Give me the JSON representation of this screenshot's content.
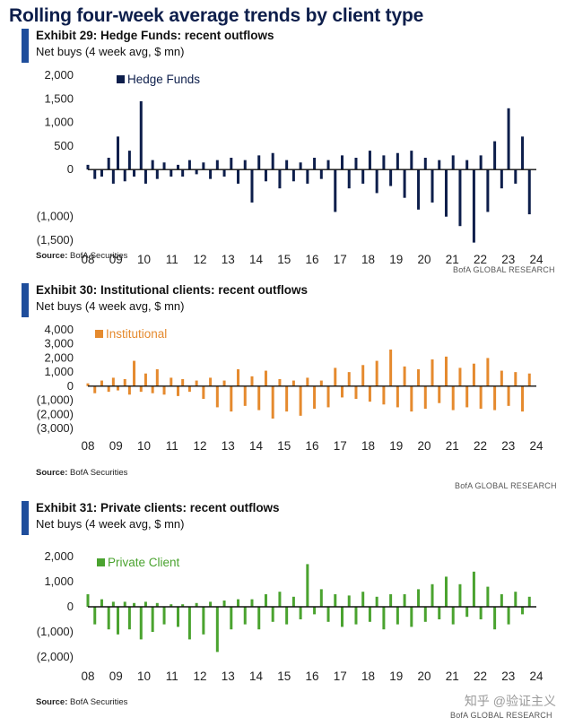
{
  "page_title": "Rolling four-week average trends by client type",
  "watermark": "知乎 @验证主义",
  "chart_data": [
    {
      "type": "bar",
      "exhibit_title": "Exhibit 29: Hedge Funds: recent outflows",
      "subtitle": "Net buys (4 week avg, $ mn)",
      "legend": "Hedge Funds",
      "color": "#0d1e4b",
      "yticks": [
        2000,
        1500,
        1000,
        500,
        0,
        -1000,
        -1500
      ],
      "ytick_labels": [
        "2,000",
        "1,500",
        "1,000",
        "500",
        "0",
        "(1,000)",
        "(1,500)"
      ],
      "ylim": [
        -1500,
        2000
      ],
      "xticks": [
        "08",
        "09",
        "10",
        "11",
        "12",
        "13",
        "14",
        "15",
        "16",
        "17",
        "18",
        "19",
        "20",
        "21",
        "22",
        "23",
        "24"
      ],
      "series": [
        {
          "x": 2008.0,
          "y": 100
        },
        {
          "x": 2008.3,
          "y": -200
        },
        {
          "x": 2008.6,
          "y": -150
        },
        {
          "x": 2008.9,
          "y": 250
        },
        {
          "x": 2009.1,
          "y": -300
        },
        {
          "x": 2009.3,
          "y": 700
        },
        {
          "x": 2009.6,
          "y": -250
        },
        {
          "x": 2009.8,
          "y": 400
        },
        {
          "x": 2010.0,
          "y": -150
        },
        {
          "x": 2010.3,
          "y": 1450
        },
        {
          "x": 2010.5,
          "y": -300
        },
        {
          "x": 2010.8,
          "y": 200
        },
        {
          "x": 2011.0,
          "y": -200
        },
        {
          "x": 2011.3,
          "y": 150
        },
        {
          "x": 2011.6,
          "y": -150
        },
        {
          "x": 2011.9,
          "y": 100
        },
        {
          "x": 2012.1,
          "y": -150
        },
        {
          "x": 2012.4,
          "y": 200
        },
        {
          "x": 2012.7,
          "y": -100
        },
        {
          "x": 2013.0,
          "y": 150
        },
        {
          "x": 2013.3,
          "y": -200
        },
        {
          "x": 2013.6,
          "y": 200
        },
        {
          "x": 2013.9,
          "y": -150
        },
        {
          "x": 2014.2,
          "y": 250
        },
        {
          "x": 2014.5,
          "y": -300
        },
        {
          "x": 2014.8,
          "y": 200
        },
        {
          "x": 2015.1,
          "y": -700
        },
        {
          "x": 2015.4,
          "y": 300
        },
        {
          "x": 2015.7,
          "y": -250
        },
        {
          "x": 2016.0,
          "y": 350
        },
        {
          "x": 2016.3,
          "y": -400
        },
        {
          "x": 2016.6,
          "y": 200
        },
        {
          "x": 2016.9,
          "y": -250
        },
        {
          "x": 2017.2,
          "y": 150
        },
        {
          "x": 2017.5,
          "y": -300
        },
        {
          "x": 2017.8,
          "y": 250
        },
        {
          "x": 2018.1,
          "y": -200
        },
        {
          "x": 2018.4,
          "y": 200
        },
        {
          "x": 2018.7,
          "y": -900
        },
        {
          "x": 2019.0,
          "y": 300
        },
        {
          "x": 2019.3,
          "y": -400
        },
        {
          "x": 2019.6,
          "y": 250
        },
        {
          "x": 2019.9,
          "y": -300
        },
        {
          "x": 2020.2,
          "y": 400
        },
        {
          "x": 2020.5,
          "y": -500
        },
        {
          "x": 2020.8,
          "y": 300
        },
        {
          "x": 2021.1,
          "y": -350
        },
        {
          "x": 2021.4,
          "y": 350
        },
        {
          "x": 2021.7,
          "y": -600
        },
        {
          "x": 2022.0,
          "y": 400
        },
        {
          "x": 2022.3,
          "y": -850
        },
        {
          "x": 2022.6,
          "y": 250
        },
        {
          "x": 2022.9,
          "y": -700
        },
        {
          "x": 2023.2,
          "y": 200
        },
        {
          "x": 2023.5,
          "y": -1000
        },
        {
          "x": 2023.8,
          "y": 300
        },
        {
          "x": 2024.1,
          "y": -1200
        },
        {
          "x": 2024.4,
          "y": 200
        },
        {
          "x": 2024.7,
          "y": -1550
        },
        {
          "x": 2025.0,
          "y": 300
        },
        {
          "x": 2025.3,
          "y": -900
        },
        {
          "x": 2025.6,
          "y": 600
        },
        {
          "x": 2025.9,
          "y": -400
        },
        {
          "x": 2026.2,
          "y": 1300
        },
        {
          "x": 2026.5,
          "y": -300
        },
        {
          "x": 2026.8,
          "y": 700
        },
        {
          "x": 2027.1,
          "y": -950
        }
      ]
    },
    {
      "type": "bar",
      "exhibit_title": "Exhibit 30: Institutional clients: recent outflows",
      "subtitle": "Net buys (4 week avg, $ mn)",
      "legend": "Institutional",
      "color": "#e58a2e",
      "yticks": [
        4000,
        3000,
        2000,
        1000,
        0,
        -1000,
        -2000,
        -3000
      ],
      "ytick_labels": [
        "4,000",
        "3,000",
        "2,000",
        "1,000",
        "0",
        "(1,000)",
        "(2,000)",
        "(3,000)"
      ],
      "ylim": [
        -3000,
        4000
      ],
      "xticks": [
        "08",
        "09",
        "10",
        "11",
        "12",
        "13",
        "14",
        "15",
        "16",
        "17",
        "18",
        "19",
        "20",
        "21",
        "22",
        "23",
        "24"
      ],
      "series": [
        {
          "x": 2008.0,
          "y": 200
        },
        {
          "x": 2008.3,
          "y": -500
        },
        {
          "x": 2008.6,
          "y": 400
        },
        {
          "x": 2008.9,
          "y": -400
        },
        {
          "x": 2009.1,
          "y": 600
        },
        {
          "x": 2009.3,
          "y": -300
        },
        {
          "x": 2009.6,
          "y": 500
        },
        {
          "x": 2009.8,
          "y": -600
        },
        {
          "x": 2010.0,
          "y": 1800
        },
        {
          "x": 2010.3,
          "y": -400
        },
        {
          "x": 2010.5,
          "y": 900
        },
        {
          "x": 2010.8,
          "y": -500
        },
        {
          "x": 2011.0,
          "y": 1200
        },
        {
          "x": 2011.3,
          "y": -600
        },
        {
          "x": 2011.6,
          "y": 600
        },
        {
          "x": 2011.9,
          "y": -700
        },
        {
          "x": 2012.1,
          "y": 500
        },
        {
          "x": 2012.4,
          "y": -400
        },
        {
          "x": 2012.7,
          "y": 400
        },
        {
          "x": 2013.0,
          "y": -900
        },
        {
          "x": 2013.3,
          "y": 600
        },
        {
          "x": 2013.6,
          "y": -1500
        },
        {
          "x": 2013.9,
          "y": 400
        },
        {
          "x": 2014.2,
          "y": -1800
        },
        {
          "x": 2014.5,
          "y": 1200
        },
        {
          "x": 2014.8,
          "y": -1400
        },
        {
          "x": 2015.1,
          "y": 700
        },
        {
          "x": 2015.4,
          "y": -1700
        },
        {
          "x": 2015.7,
          "y": 1100
        },
        {
          "x": 2016.0,
          "y": -2300
        },
        {
          "x": 2016.3,
          "y": 500
        },
        {
          "x": 2016.6,
          "y": -1800
        },
        {
          "x": 2016.9,
          "y": 400
        },
        {
          "x": 2017.2,
          "y": -2100
        },
        {
          "x": 2017.5,
          "y": 600
        },
        {
          "x": 2017.8,
          "y": -1600
        },
        {
          "x": 2018.1,
          "y": 400
        },
        {
          "x": 2018.4,
          "y": -1500
        },
        {
          "x": 2018.7,
          "y": 1300
        },
        {
          "x": 2019.0,
          "y": -800
        },
        {
          "x": 2019.3,
          "y": 1000
        },
        {
          "x": 2019.6,
          "y": -900
        },
        {
          "x": 2019.9,
          "y": 1500
        },
        {
          "x": 2020.2,
          "y": -1100
        },
        {
          "x": 2020.5,
          "y": 1800
        },
        {
          "x": 2020.8,
          "y": -1300
        },
        {
          "x": 2021.1,
          "y": 2600
        },
        {
          "x": 2021.4,
          "y": -1500
        },
        {
          "x": 2021.7,
          "y": 1400
        },
        {
          "x": 2022.0,
          "y": -1800
        },
        {
          "x": 2022.3,
          "y": 1200
        },
        {
          "x": 2022.6,
          "y": -1600
        },
        {
          "x": 2022.9,
          "y": 1900
        },
        {
          "x": 2023.2,
          "y": -1200
        },
        {
          "x": 2023.5,
          "y": 2100
        },
        {
          "x": 2023.8,
          "y": -1700
        },
        {
          "x": 2024.1,
          "y": 1300
        },
        {
          "x": 2024.4,
          "y": -1500
        },
        {
          "x": 2024.7,
          "y": 1600
        },
        {
          "x": 2025.0,
          "y": -1600
        },
        {
          "x": 2025.3,
          "y": 2000
        },
        {
          "x": 2025.6,
          "y": -1700
        },
        {
          "x": 2025.9,
          "y": 1100
        },
        {
          "x": 2026.2,
          "y": -1400
        },
        {
          "x": 2026.5,
          "y": 1000
        },
        {
          "x": 2026.8,
          "y": -1800
        },
        {
          "x": 2027.1,
          "y": 900
        }
      ]
    },
    {
      "type": "bar",
      "exhibit_title": "Exhibit 31: Private clients: recent outflows",
      "subtitle": "Net buys (4 week avg, $ mn)",
      "legend": "Private Client",
      "color": "#4aa32f",
      "yticks": [
        2000,
        1000,
        0,
        -1000,
        -2000
      ],
      "ytick_labels": [
        "2,000",
        "1,000",
        "0",
        "(1,000)",
        "(2,000)"
      ],
      "ylim": [
        -2000,
        2000
      ],
      "xticks": [
        "08",
        "09",
        "10",
        "11",
        "12",
        "13",
        "14",
        "15",
        "16",
        "17",
        "18",
        "19",
        "20",
        "21",
        "22",
        "23",
        "24"
      ],
      "series": [
        {
          "x": 2008.0,
          "y": 500
        },
        {
          "x": 2008.3,
          "y": -700
        },
        {
          "x": 2008.6,
          "y": 300
        },
        {
          "x": 2008.9,
          "y": -900
        },
        {
          "x": 2009.1,
          "y": 200
        },
        {
          "x": 2009.3,
          "y": -1100
        },
        {
          "x": 2009.6,
          "y": 200
        },
        {
          "x": 2009.8,
          "y": -900
        },
        {
          "x": 2010.0,
          "y": 150
        },
        {
          "x": 2010.3,
          "y": -1300
        },
        {
          "x": 2010.5,
          "y": 200
        },
        {
          "x": 2010.8,
          "y": -1000
        },
        {
          "x": 2011.0,
          "y": 150
        },
        {
          "x": 2011.3,
          "y": -700
        },
        {
          "x": 2011.6,
          "y": 100
        },
        {
          "x": 2011.9,
          "y": -800
        },
        {
          "x": 2012.1,
          "y": 100
        },
        {
          "x": 2012.4,
          "y": -1300
        },
        {
          "x": 2012.7,
          "y": 150
        },
        {
          "x": 2013.0,
          "y": -1100
        },
        {
          "x": 2013.3,
          "y": 200
        },
        {
          "x": 2013.6,
          "y": -1800
        },
        {
          "x": 2013.9,
          "y": 250
        },
        {
          "x": 2014.2,
          "y": -900
        },
        {
          "x": 2014.5,
          "y": 300
        },
        {
          "x": 2014.8,
          "y": -700
        },
        {
          "x": 2015.1,
          "y": 300
        },
        {
          "x": 2015.4,
          "y": -900
        },
        {
          "x": 2015.7,
          "y": 500
        },
        {
          "x": 2016.0,
          "y": -600
        },
        {
          "x": 2016.3,
          "y": 600
        },
        {
          "x": 2016.6,
          "y": -700
        },
        {
          "x": 2016.9,
          "y": 400
        },
        {
          "x": 2017.2,
          "y": -500
        },
        {
          "x": 2017.5,
          "y": 1700
        },
        {
          "x": 2017.8,
          "y": -300
        },
        {
          "x": 2018.1,
          "y": 700
        },
        {
          "x": 2018.4,
          "y": -600
        },
        {
          "x": 2018.7,
          "y": 500
        },
        {
          "x": 2019.0,
          "y": -800
        },
        {
          "x": 2019.3,
          "y": 450
        },
        {
          "x": 2019.6,
          "y": -700
        },
        {
          "x": 2019.9,
          "y": 600
        },
        {
          "x": 2020.2,
          "y": -600
        },
        {
          "x": 2020.5,
          "y": 400
        },
        {
          "x": 2020.8,
          "y": -900
        },
        {
          "x": 2021.1,
          "y": 500
        },
        {
          "x": 2021.4,
          "y": -700
        },
        {
          "x": 2021.7,
          "y": 500
        },
        {
          "x": 2022.0,
          "y": -800
        },
        {
          "x": 2022.3,
          "y": 700
        },
        {
          "x": 2022.6,
          "y": -600
        },
        {
          "x": 2022.9,
          "y": 900
        },
        {
          "x": 2023.2,
          "y": -500
        },
        {
          "x": 2023.5,
          "y": 1200
        },
        {
          "x": 2023.8,
          "y": -700
        },
        {
          "x": 2024.1,
          "y": 900
        },
        {
          "x": 2024.4,
          "y": -400
        },
        {
          "x": 2024.7,
          "y": 1400
        },
        {
          "x": 2025.0,
          "y": -500
        },
        {
          "x": 2025.3,
          "y": 800
        },
        {
          "x": 2025.6,
          "y": -900
        },
        {
          "x": 2025.9,
          "y": 500
        },
        {
          "x": 2026.2,
          "y": -700
        },
        {
          "x": 2026.5,
          "y": 600
        },
        {
          "x": 2026.8,
          "y": -300
        },
        {
          "x": 2027.1,
          "y": 400
        }
      ]
    }
  ],
  "source_label": "Source:",
  "source_text": " BofA Securities",
  "research_label": "BofA GLOBAL RESEARCH"
}
